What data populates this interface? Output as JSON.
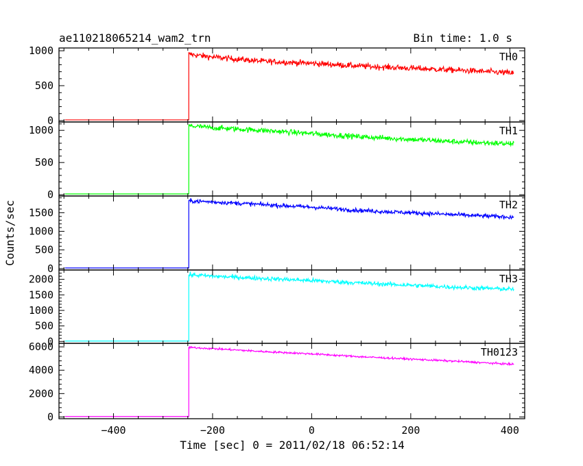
{
  "header": {
    "title": "ae110218065214_wam2_trn",
    "bin_time": "Bin time: 1.0 s"
  },
  "chart_data": {
    "type": "line",
    "xlabel": "Time [sec] 0 = 2011/02/18 06:52:14",
    "ylabel": "Counts/sec",
    "xlim": [
      -510,
      430
    ],
    "x_ticks": [
      -400,
      -200,
      0,
      200,
      400
    ],
    "x_tick_labels": [
      "−400",
      "−200",
      "0",
      "200",
      "400"
    ],
    "onset_x": -248,
    "end_x": 408,
    "panels": [
      {
        "name": "TH0",
        "color": "#ff0000",
        "ylim": [
          -20,
          1040
        ],
        "yticks": [
          0,
          500,
          1000
        ],
        "ytick_labels": [
          "0",
          "500",
          "1000"
        ],
        "pre_level": 10,
        "trend": [
          [
            -248,
            950
          ],
          [
            -200,
            910
          ],
          [
            -100,
            850
          ],
          [
            0,
            820
          ],
          [
            100,
            780
          ],
          [
            200,
            750
          ],
          [
            300,
            720
          ],
          [
            408,
            680
          ]
        ],
        "noise": 30
      },
      {
        "name": "TH1",
        "color": "#00ff00",
        "ylim": [
          -20,
          1130
        ],
        "yticks": [
          0,
          500,
          1000
        ],
        "ytick_labels": [
          "0",
          "500",
          "1000"
        ],
        "pre_level": 12,
        "trend": [
          [
            -248,
            1070
          ],
          [
            -200,
            1040
          ],
          [
            -100,
            1000
          ],
          [
            0,
            950
          ],
          [
            100,
            900
          ],
          [
            200,
            860
          ],
          [
            300,
            820
          ],
          [
            408,
            790
          ]
        ],
        "noise": 30
      },
      {
        "name": "TH2",
        "color": "#0000ff",
        "ylim": [
          -40,
          1950
        ],
        "yticks": [
          0,
          500,
          1000,
          1500
        ],
        "ytick_labels": [
          "0",
          "500",
          "1000",
          "1500"
        ],
        "pre_level": 15,
        "trend": [
          [
            -248,
            1820
          ],
          [
            -200,
            1790
          ],
          [
            -100,
            1720
          ],
          [
            0,
            1650
          ],
          [
            100,
            1560
          ],
          [
            200,
            1500
          ],
          [
            300,
            1440
          ],
          [
            408,
            1380
          ]
        ],
        "noise": 40
      },
      {
        "name": "TH3",
        "color": "#00ffff",
        "ylim": [
          -60,
          2300
        ],
        "yticks": [
          0,
          500,
          1000,
          1500,
          2000
        ],
        "ytick_labels": [
          "0",
          "500",
          "1000",
          "1500",
          "2000"
        ],
        "pre_level": 15,
        "trend": [
          [
            -248,
            2150
          ],
          [
            -200,
            2100
          ],
          [
            -100,
            2030
          ],
          [
            0,
            1960
          ],
          [
            100,
            1880
          ],
          [
            200,
            1810
          ],
          [
            300,
            1740
          ],
          [
            408,
            1680
          ]
        ],
        "noise": 50
      },
      {
        "name": "TH0123",
        "color": "#ff00ff",
        "ylim": [
          -150,
          6300
        ],
        "yticks": [
          0,
          2000,
          4000,
          6000
        ],
        "ytick_labels": [
          "0",
          "2000",
          "4000",
          "6000"
        ],
        "pre_level": 40,
        "trend": [
          [
            -248,
            5950
          ],
          [
            -200,
            5850
          ],
          [
            -100,
            5600
          ],
          [
            0,
            5400
          ],
          [
            100,
            5150
          ],
          [
            200,
            4950
          ],
          [
            300,
            4750
          ],
          [
            408,
            4500
          ]
        ],
        "noise": 60
      }
    ]
  }
}
